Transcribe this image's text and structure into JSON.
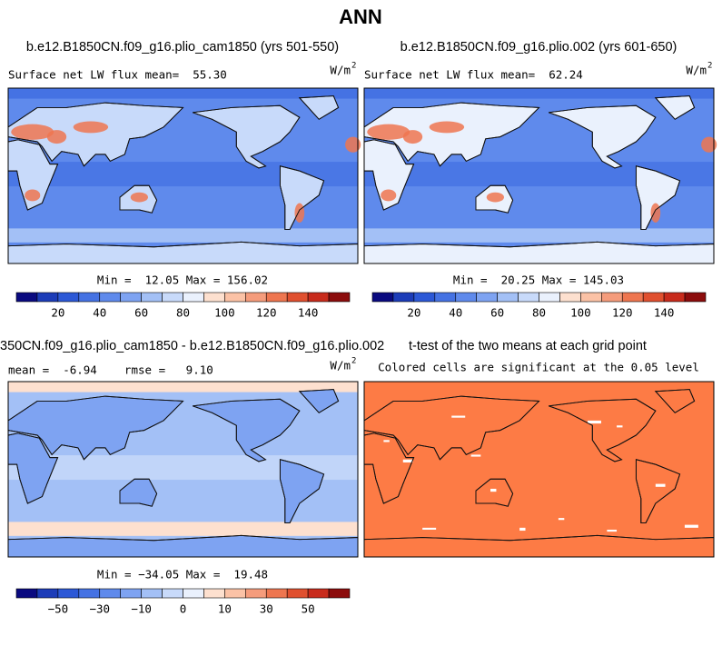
{
  "title": "ANN",
  "panels": [
    {
      "case": "b.e12.B1850CN.f09_g16.plio_cam1850 (yrs 501-550)",
      "left": "Surface net LW flux mean=  55.30",
      "units": "W/m",
      "units_sup": "2",
      "stats": "Min =  12.05 Max = 156.02"
    },
    {
      "case": "b.e12.B1850CN.f09_g16.plio.002 (yrs 601-650)",
      "left": "Surface net LW flux mean=  62.24",
      "units": "W/m",
      "units_sup": "2",
      "stats": "Min =  20.25 Max = 145.03"
    },
    {
      "case": "350CN.f09_g16.plio_cam1850 - b.e12.B1850CN.f09_g16.plio.002",
      "left": "mean =  -6.94    rmse =   9.10",
      "units": "W/m",
      "units_sup": "2",
      "stats": "Min = −34.05 Max =  19.48"
    },
    {
      "case": "t-test of the two means at each grid point",
      "left": "Colored cells are significant at the 0.05 level"
    }
  ],
  "colorbars": [
    {
      "labels": [
        "20",
        "40",
        "60",
        "80",
        "100",
        "120",
        "140"
      ]
    },
    {
      "labels": [
        "−50",
        "−30",
        "−10",
        "0",
        "10",
        "30",
        "50"
      ]
    }
  ],
  "palette": [
    "#0a0a80",
    "#1c3cb8",
    "#2c58d6",
    "#4572e3",
    "#5f8aec",
    "#7ea3f2",
    "#a3c0f6",
    "#c8dafa",
    "#eaf1fd",
    "#fde0cf",
    "#fbc2a6",
    "#f59c7c",
    "#ee7650",
    "#e0502f",
    "#c82b1c",
    "#8c0c0c"
  ]
}
